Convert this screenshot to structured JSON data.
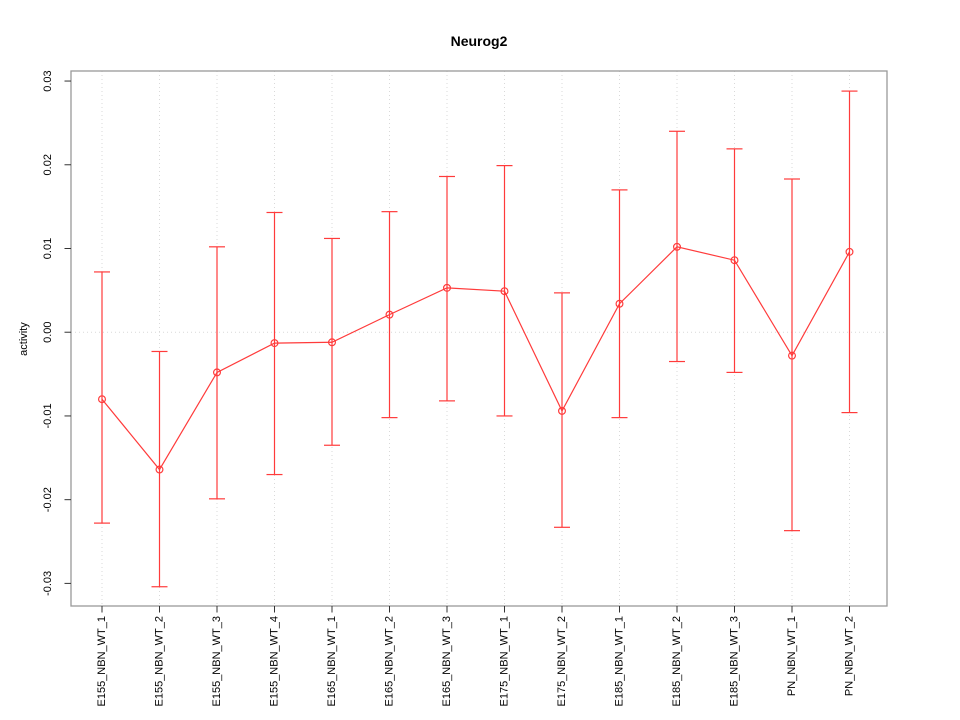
{
  "chart_data": {
    "type": "line",
    "title": "Neurog2",
    "xlabel": "",
    "ylabel": "activity",
    "legend_position": "none",
    "grid": {
      "vertical_dotted_at_each_category": true,
      "horizontal_dotted_at_zero": true
    },
    "categories": [
      "E155_NBN_WT_1",
      "E155_NBN_WT_2",
      "E155_NBN_WT_3",
      "E155_NBN_WT_4",
      "E165_NBN_WT_1",
      "E165_NBN_WT_2",
      "E165_NBN_WT_3",
      "E175_NBN_WT_1",
      "E175_NBN_WT_2",
      "E185_NBN_WT_1",
      "E185_NBN_WT_2",
      "E185_NBN_WT_3",
      "PN_NBN_WT_1",
      "PN_NBN_WT_2"
    ],
    "series": [
      {
        "name": "activity",
        "marker": "open-circle",
        "values": [
          -0.008,
          -0.0164,
          -0.0048,
          -0.0013,
          -0.0012,
          0.0021,
          0.0053,
          0.0049,
          -0.0094,
          0.0034,
          0.0102,
          0.0086,
          -0.0028,
          0.0096
        ],
        "error_upper": [
          0.0072,
          -0.0023,
          0.0102,
          0.0143,
          0.0112,
          0.0144,
          0.0186,
          0.0199,
          0.0047,
          0.017,
          0.024,
          0.0219,
          0.0183,
          0.0288
        ],
        "error_lower": [
          -0.0228,
          -0.0304,
          -0.0199,
          -0.017,
          -0.0135,
          -0.0102,
          -0.0082,
          -0.01,
          -0.0233,
          -0.0102,
          -0.0035,
          -0.0048,
          -0.0237,
          -0.0096
        ]
      }
    ],
    "y_ticks": [
      -0.03,
      -0.02,
      -0.01,
      0.0,
      0.01,
      0.02,
      0.03
    ],
    "ylim": [
      -0.0327,
      0.0312
    ],
    "colors": {
      "series": "#ff3b3b",
      "grid": "#d9d9d9",
      "frame": "#999999",
      "tick": "#333333",
      "text": "#000000"
    }
  }
}
